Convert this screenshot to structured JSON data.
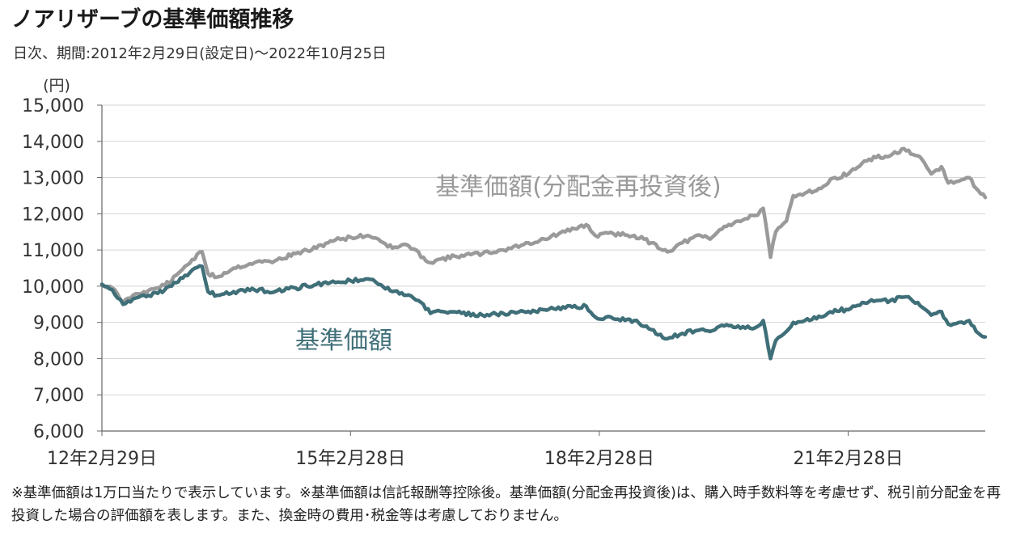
{
  "title": "ノアリザーブの基準価額推移",
  "subtitle": "日次、期間:2012年2月29日(設定日)〜2022年10月25日",
  "footnote": "※基準価額は1万口当たりで表示しています。※基準価額は信託報酬等控除後。基準価額(分配金再投資後)は、購入時手数料等を考慮せず、税引前分配金を再投資した場合の評価額を表します。また、換金時の費用･税金等は考慮しておりません。",
  "colors": {
    "reinvested": "#9a9a9a",
    "nav": "#3f6f78",
    "grid": "#d4d4d4",
    "axis": "#666666"
  },
  "chart_data": {
    "type": "line",
    "y_unit_label": "(円)",
    "ylim": [
      6000,
      15000
    ],
    "yticks": [
      6000,
      7000,
      8000,
      9000,
      10000,
      11000,
      12000,
      13000,
      14000,
      15000
    ],
    "ytick_labels": [
      "6,000",
      "7,000",
      "8,000",
      "9,000",
      "10,000",
      "11,000",
      "12,000",
      "13,000",
      "14,000",
      "15,000"
    ],
    "xlim": [
      "2012-02-29",
      "2022-10-25"
    ],
    "xticks": [
      {
        "date": "2012-02-29",
        "label": "12年2月29日"
      },
      {
        "date": "2015-02-28",
        "label": "15年2月28日"
      },
      {
        "date": "2018-02-28",
        "label": "18年2月28日"
      },
      {
        "date": "2021-02-28",
        "label": "21年2月28日"
      }
    ],
    "grid": "horizontal",
    "series": [
      {
        "name": "基準価額(分配金再投資後)",
        "color": "#9a9a9a",
        "points": [
          [
            "2012-02-29",
            10050
          ],
          [
            "2012-04-15",
            9950
          ],
          [
            "2012-06-01",
            9550
          ],
          [
            "2012-07-15",
            9750
          ],
          [
            "2012-09-01",
            9850
          ],
          [
            "2012-11-01",
            9950
          ],
          [
            "2013-01-01",
            10150
          ],
          [
            "2013-03-01",
            10550
          ],
          [
            "2013-05-15",
            10950
          ],
          [
            "2013-06-10",
            10350
          ],
          [
            "2013-07-20",
            10250
          ],
          [
            "2013-10-01",
            10500
          ],
          [
            "2014-01-01",
            10650
          ],
          [
            "2014-04-01",
            10700
          ],
          [
            "2014-07-01",
            10900
          ],
          [
            "2014-10-01",
            11050
          ],
          [
            "2014-12-01",
            11250
          ],
          [
            "2015-03-01",
            11350
          ],
          [
            "2015-05-15",
            11400
          ],
          [
            "2015-07-01",
            11300
          ],
          [
            "2015-09-01",
            11050
          ],
          [
            "2015-11-01",
            11150
          ],
          [
            "2016-01-15",
            10800
          ],
          [
            "2016-02-15",
            10650
          ],
          [
            "2016-04-01",
            10750
          ],
          [
            "2016-07-01",
            10850
          ],
          [
            "2016-10-01",
            10900
          ],
          [
            "2017-01-01",
            11000
          ],
          [
            "2017-04-01",
            11150
          ],
          [
            "2017-07-01",
            11300
          ],
          [
            "2017-10-01",
            11500
          ],
          [
            "2018-01-01",
            11700
          ],
          [
            "2018-02-10",
            11400
          ],
          [
            "2018-05-01",
            11450
          ],
          [
            "2018-08-01",
            11400
          ],
          [
            "2018-10-15",
            11200
          ],
          [
            "2018-12-25",
            10950
          ],
          [
            "2019-03-01",
            11200
          ],
          [
            "2019-05-20",
            11400
          ],
          [
            "2019-07-01",
            11300
          ],
          [
            "2019-09-01",
            11650
          ],
          [
            "2019-11-01",
            11800
          ],
          [
            "2020-01-15",
            11950
          ],
          [
            "2020-02-20",
            12150
          ],
          [
            "2020-03-23",
            10800
          ],
          [
            "2020-04-15",
            11500
          ],
          [
            "2020-06-01",
            11800
          ],
          [
            "2020-07-01",
            12500
          ],
          [
            "2020-09-01",
            12600
          ],
          [
            "2020-11-01",
            12700
          ],
          [
            "2021-01-01",
            13000
          ],
          [
            "2021-03-01",
            13100
          ],
          [
            "2021-05-01",
            13400
          ],
          [
            "2021-07-01",
            13550
          ],
          [
            "2021-09-01",
            13600
          ],
          [
            "2021-11-01",
            13800
          ],
          [
            "2021-12-01",
            13650
          ],
          [
            "2022-01-01",
            13600
          ],
          [
            "2022-03-01",
            13100
          ],
          [
            "2022-04-15",
            13300
          ],
          [
            "2022-05-15",
            12850
          ],
          [
            "2022-07-01",
            12900
          ],
          [
            "2022-08-15",
            13000
          ],
          [
            "2022-09-15",
            12700
          ],
          [
            "2022-10-25",
            12450
          ]
        ]
      },
      {
        "name": "基準価額",
        "color": "#3f6f78",
        "points": [
          [
            "2012-02-29",
            10050
          ],
          [
            "2012-04-15",
            9900
          ],
          [
            "2012-06-01",
            9500
          ],
          [
            "2012-07-15",
            9650
          ],
          [
            "2012-09-01",
            9750
          ],
          [
            "2012-11-01",
            9800
          ],
          [
            "2013-01-01",
            10000
          ],
          [
            "2013-03-01",
            10300
          ],
          [
            "2013-05-15",
            10550
          ],
          [
            "2013-06-10",
            9850
          ],
          [
            "2013-07-20",
            9750
          ],
          [
            "2013-10-01",
            9850
          ],
          [
            "2014-01-01",
            9900
          ],
          [
            "2014-04-01",
            9850
          ],
          [
            "2014-07-01",
            9950
          ],
          [
            "2014-10-01",
            10050
          ],
          [
            "2014-12-01",
            10100
          ],
          [
            "2015-03-01",
            10150
          ],
          [
            "2015-05-15",
            10200
          ],
          [
            "2015-07-01",
            10050
          ],
          [
            "2015-09-01",
            9850
          ],
          [
            "2015-11-01",
            9750
          ],
          [
            "2016-01-15",
            9500
          ],
          [
            "2016-02-15",
            9250
          ],
          [
            "2016-04-01",
            9300
          ],
          [
            "2016-07-01",
            9250
          ],
          [
            "2016-10-01",
            9200
          ],
          [
            "2017-01-01",
            9250
          ],
          [
            "2017-04-01",
            9300
          ],
          [
            "2017-07-01",
            9350
          ],
          [
            "2017-10-01",
            9400
          ],
          [
            "2018-01-01",
            9450
          ],
          [
            "2018-02-10",
            9150
          ],
          [
            "2018-05-01",
            9100
          ],
          [
            "2018-08-01",
            9050
          ],
          [
            "2018-10-15",
            8800
          ],
          [
            "2018-12-25",
            8550
          ],
          [
            "2019-03-01",
            8700
          ],
          [
            "2019-05-20",
            8800
          ],
          [
            "2019-07-01",
            8750
          ],
          [
            "2019-09-01",
            8900
          ],
          [
            "2019-11-01",
            8900
          ],
          [
            "2020-01-15",
            8850
          ],
          [
            "2020-02-20",
            9050
          ],
          [
            "2020-03-23",
            8000
          ],
          [
            "2020-04-15",
            8500
          ],
          [
            "2020-06-01",
            8750
          ],
          [
            "2020-07-01",
            9000
          ],
          [
            "2020-09-01",
            9100
          ],
          [
            "2020-11-01",
            9150
          ],
          [
            "2021-01-01",
            9350
          ],
          [
            "2021-03-01",
            9350
          ],
          [
            "2021-05-01",
            9550
          ],
          [
            "2021-07-01",
            9600
          ],
          [
            "2021-09-01",
            9600
          ],
          [
            "2021-11-01",
            9700
          ],
          [
            "2021-12-01",
            9650
          ],
          [
            "2022-01-01",
            9550
          ],
          [
            "2022-03-01",
            9200
          ],
          [
            "2022-04-15",
            9300
          ],
          [
            "2022-05-15",
            8950
          ],
          [
            "2022-07-01",
            9000
          ],
          [
            "2022-08-15",
            9050
          ],
          [
            "2022-09-15",
            8750
          ],
          [
            "2022-10-25",
            8600
          ]
        ]
      }
    ]
  }
}
